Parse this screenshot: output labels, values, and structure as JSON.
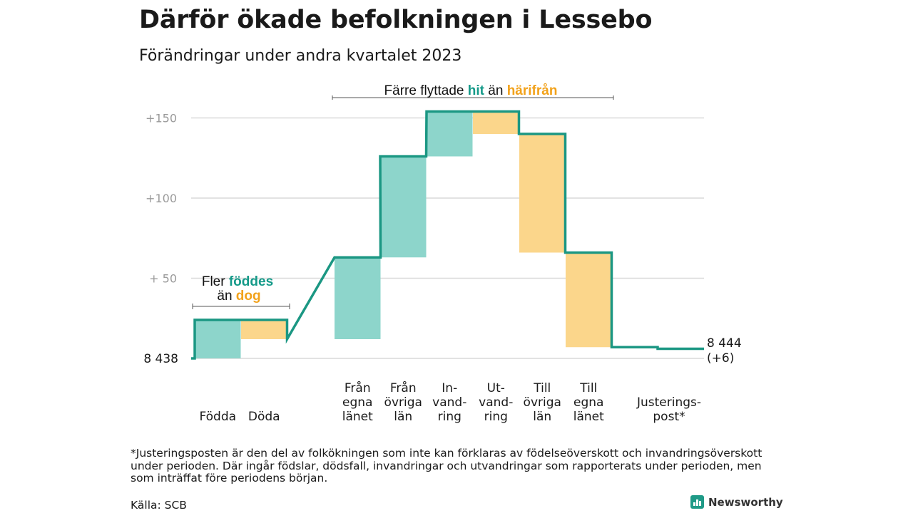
{
  "title": "Därför ökade befolkningen i Lessebo",
  "subtitle": "Förändringar under andra kvartalet 2023",
  "colors": {
    "increase": "#8dd5cb",
    "decrease": "#fbd68b",
    "line": "#1b9783",
    "teal_text": "#159a89",
    "orange_text": "#f2a21b",
    "grid": "#d9d9d9",
    "tick_text": "#9a9a9a",
    "brand": "#1f9a87"
  },
  "annotations": {
    "birth": {
      "prefix": "Fler",
      "highlight1": "föddes",
      "line2_prefix": "än",
      "highlight2": "dog"
    },
    "migration": {
      "prefix": "Färre flyttade",
      "highlight1": "hit",
      "middle": "än",
      "highlight2": "härifrån"
    }
  },
  "chart_data": {
    "type": "waterfall",
    "baseline_label": "8  438",
    "end_label": [
      "8 444",
      "(+6)"
    ],
    "y_ticks": [
      {
        "value": 50,
        "label": "+  50"
      },
      {
        "value": 100,
        "label": "+100"
      },
      {
        "value": 150,
        "label": "+150"
      }
    ],
    "ylim": [
      0,
      160
    ],
    "steps": [
      {
        "label": [
          "Födda"
        ],
        "change": 24,
        "kind": "increase"
      },
      {
        "label": [
          "Döda"
        ],
        "change": -12,
        "kind": "decrease"
      },
      {
        "label": [
          "Från",
          "egna",
          "länet"
        ],
        "change": 51,
        "kind": "increase"
      },
      {
        "label": [
          "Från",
          "övriga",
          "län"
        ],
        "change": 63,
        "kind": "increase"
      },
      {
        "label": [
          "In-",
          "vand-",
          "ring"
        ],
        "change": 28,
        "kind": "increase"
      },
      {
        "label": [
          "Ut-",
          "vand-",
          "ring"
        ],
        "change": -14,
        "kind": "decrease"
      },
      {
        "label": [
          "Till",
          "övriga",
          "län"
        ],
        "change": -74,
        "kind": "decrease"
      },
      {
        "label": [
          "Till",
          "egna",
          "länet"
        ],
        "change": -59,
        "kind": "decrease"
      },
      {
        "label": [
          "Justerings-",
          "post*"
        ],
        "change": -1,
        "kind": "adjustment"
      }
    ]
  },
  "footnote": "*Justeringsposten är den del av folkökningen som inte kan förklaras av födelseöverskott och invandringsöverskott under perioden. Där ingår födslar, dödsfall, invandringar och utvandringar som rapporterats under perioden, men som inträffat före periodens början.",
  "source": "Källa: SCB",
  "brand": {
    "name": "Newsworthy",
    "icon": "bar-chart-icon"
  }
}
